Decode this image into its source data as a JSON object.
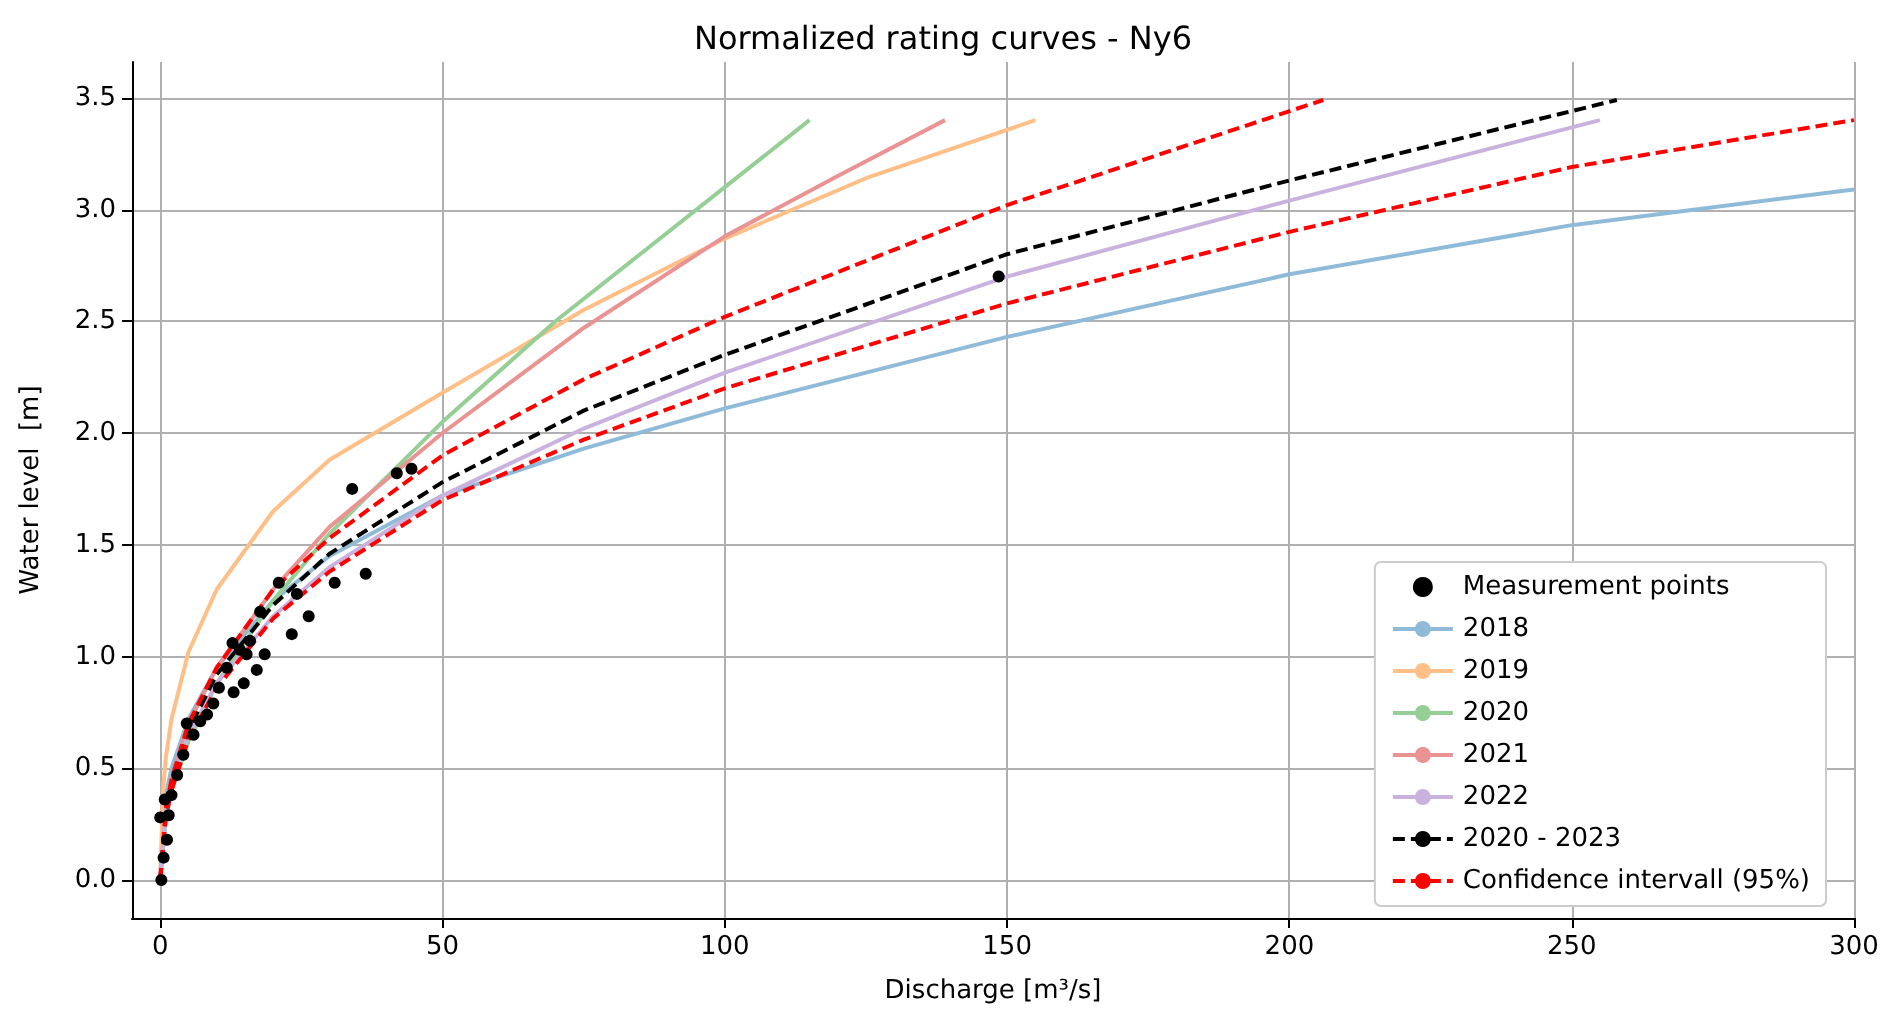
{
  "chart_data": {
    "type": "line",
    "title": "Normalized rating curves - Ny6",
    "xlabel": "Discharge [m³/s]",
    "ylabel": "Water level  [m]",
    "xlim": [
      -5,
      300
    ],
    "xticks": [
      0,
      50,
      100,
      150,
      200,
      250,
      300
    ],
    "ylim": [
      -0.17,
      3.66
    ],
    "yticks": [
      {
        "value": 0,
        "label": "0.0"
      },
      0.5,
      {
        "value": 1,
        "label": "1.0"
      },
      1.5,
      {
        "value": 2,
        "label": "2.0"
      },
      2.5,
      {
        "value": 3,
        "label": "3.0"
      },
      3.5
    ],
    "grid": true,
    "legend": "bottom right",
    "series": [
      {
        "name": "Measurement points",
        "type": "scatter",
        "marker": "circle",
        "color": "#000000",
        "x": [
          0.2,
          0.6,
          1.2,
          0,
          0.8,
          1.5,
          2.0,
          3.0,
          4.1,
          4.7,
          5.9,
          7.1,
          8.3,
          9.4,
          10.4,
          11.8,
          12.8,
          13.0,
          14.1,
          14.8,
          15.3,
          15.9,
          17.1,
          17.7,
          18.5,
          21.0,
          23.3,
          24.2,
          26.3,
          30.9,
          34.0,
          36.4,
          41.9,
          44.5,
          148.5
        ],
        "values": [
          0.0,
          0.1,
          0.18,
          0.28,
          0.36,
          0.29,
          0.38,
          0.47,
          0.56,
          0.7,
          0.65,
          0.71,
          0.74,
          0.79,
          0.86,
          0.95,
          1.06,
          0.84,
          1.03,
          0.88,
          1.01,
          1.07,
          0.94,
          1.2,
          1.01,
          1.33,
          1.1,
          1.28,
          1.18,
          1.33,
          1.75,
          1.37,
          1.82,
          1.84,
          2.7
        ]
      },
      {
        "name": "2018",
        "color": "#8fbbd9",
        "x": [
          0,
          0.5,
          1,
          2,
          5,
          10,
          20,
          30,
          50,
          75,
          100,
          150,
          200,
          250,
          300
        ],
        "values": [
          0,
          0.25,
          0.38,
          0.5,
          0.72,
          0.95,
          1.25,
          1.45,
          1.72,
          1.93,
          2.11,
          2.43,
          2.71,
          2.93,
          3.09
        ]
      },
      {
        "name": "2019",
        "color": "#ffbf86",
        "x": [
          0,
          0.5,
          1,
          2,
          5,
          10,
          20,
          30,
          50,
          75,
          100,
          125,
          155
        ],
        "values": [
          0,
          0.4,
          0.55,
          0.72,
          1.02,
          1.3,
          1.65,
          1.88,
          2.18,
          2.55,
          2.87,
          3.14,
          3.4
        ]
      },
      {
        "name": "2020",
        "color": "#95cf95",
        "x": [
          0,
          1,
          2,
          5,
          10,
          20,
          30,
          50,
          70,
          85,
          100,
          115
        ],
        "values": [
          0,
          0.28,
          0.4,
          0.62,
          0.88,
          1.25,
          1.55,
          2.05,
          2.5,
          2.8,
          3.1,
          3.4
        ]
      },
      {
        "name": "2021",
        "color": "#ea9393",
        "x": [
          0,
          1,
          2,
          5,
          10,
          20,
          30,
          50,
          75,
          100,
          120,
          139
        ],
        "values": [
          0,
          0.32,
          0.45,
          0.7,
          0.95,
          1.3,
          1.58,
          2.0,
          2.47,
          2.88,
          3.15,
          3.4
        ]
      },
      {
        "name": "2022",
        "color": "#c9b3de",
        "x": [
          0,
          1,
          2,
          5,
          10,
          20,
          30,
          50,
          75,
          100,
          150,
          200,
          255
        ],
        "values": [
          0,
          0.3,
          0.42,
          0.65,
          0.88,
          1.18,
          1.4,
          1.72,
          2.02,
          2.27,
          2.7,
          3.04,
          3.4
        ]
      },
      {
        "name": "2020 - 2023",
        "color": "#000000",
        "line_style": "dashed",
        "x": [
          0,
          1,
          2,
          5,
          10,
          20,
          30,
          50,
          75,
          100,
          150,
          200,
          258
        ],
        "values": [
          0,
          0.3,
          0.43,
          0.67,
          0.92,
          1.23,
          1.46,
          1.78,
          2.1,
          2.35,
          2.8,
          3.13,
          3.49
        ]
      },
      {
        "name": "Confidence intervall (95%)",
        "color": "#ff0000",
        "line_style": "dashed",
        "x": [
          0,
          1,
          2,
          5,
          10,
          20,
          30,
          50,
          75,
          100,
          150,
          206
        ],
        "values": [
          0,
          0.32,
          0.45,
          0.7,
          0.95,
          1.3,
          1.53,
          1.9,
          2.24,
          2.52,
          3.02,
          3.49
        ]
      },
      {
        "color": "#ff0000",
        "line_style": "dashed",
        "x": [
          0,
          1,
          2,
          5,
          10,
          20,
          30,
          50,
          75,
          100,
          150,
          200,
          250,
          300
        ],
        "values": [
          0,
          0.28,
          0.4,
          0.63,
          0.86,
          1.17,
          1.38,
          1.7,
          1.97,
          2.2,
          2.58,
          2.9,
          3.19,
          3.4
        ]
      }
    ]
  }
}
